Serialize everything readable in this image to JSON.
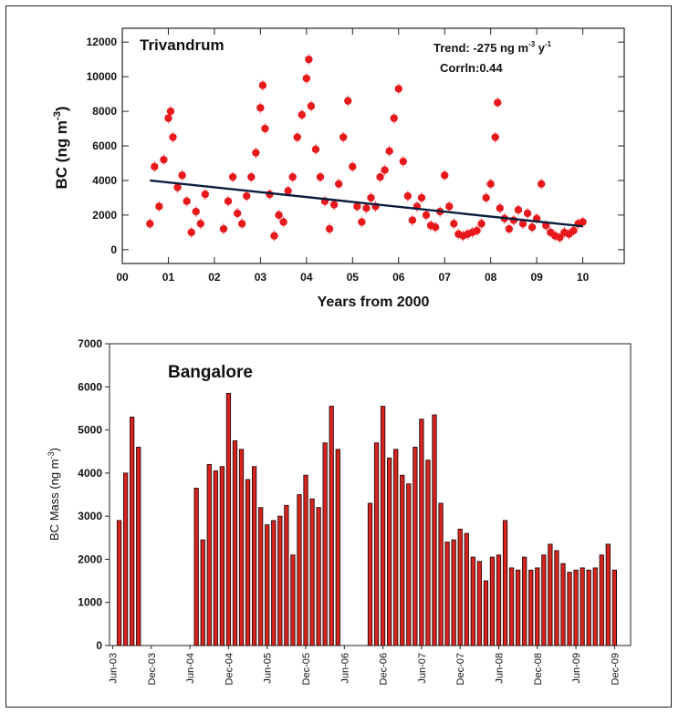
{
  "chart_data": [
    {
      "type": "scatter",
      "title": "Trivandrum",
      "annotation_trend": "Trend: -275 ng m",
      "annotation_trend_sup1": "-3",
      "annotation_trend_mid": " y",
      "annotation_trend_sup2": "-1",
      "annotation_corr": "Corrln:0.44",
      "ylabel_main": "BC (ng m",
      "ylabel_sup": "-3",
      "ylabel_end": ")",
      "xlabel": "Years from 2000",
      "xlim": [
        0,
        10.9
      ],
      "ylim": [
        -800,
        12800
      ],
      "x_ticks": [
        "00",
        "01",
        "02",
        "03",
        "04",
        "05",
        "06",
        "07",
        "08",
        "09",
        "10"
      ],
      "y_ticks": [
        "0",
        "2000",
        "4000",
        "6000",
        "8000",
        "10000",
        "12000"
      ],
      "point_color": "#e8191c",
      "trend_color": "#0a1e3c",
      "trend_line": {
        "x": [
          0.6,
          10.0
        ],
        "y": [
          4000,
          1350
        ]
      },
      "series": [
        {
          "x": [
            0.6,
            0.7,
            0.8,
            0.9,
            1.0,
            1.05,
            1.1,
            1.2,
            1.3,
            1.4,
            1.5,
            1.6,
            1.7,
            1.8,
            2.2,
            2.3,
            2.4,
            2.5,
            2.6,
            2.7,
            2.8,
            2.9,
            3.0,
            3.05,
            3.1,
            3.2,
            3.3,
            3.4,
            3.5,
            3.6,
            3.7,
            3.8,
            3.9,
            4.0,
            4.05,
            4.1,
            4.2,
            4.3,
            4.4,
            4.5,
            4.6,
            4.7,
            4.8,
            4.9,
            5.0,
            5.1,
            5.2,
            5.3,
            5.4,
            5.5,
            5.6,
            5.7,
            5.8,
            5.9,
            6.0,
            6.1,
            6.2,
            6.3,
            6.4,
            6.5,
            6.6,
            6.7,
            6.8,
            6.9,
            7.0,
            7.1,
            7.2,
            7.3,
            7.4,
            7.5,
            7.6,
            7.7,
            7.8,
            7.9,
            8.0,
            8.1,
            8.15,
            8.2,
            8.3,
            8.4,
            8.5,
            8.6,
            8.7,
            8.8,
            8.9,
            9.0,
            9.1,
            9.2,
            9.3,
            9.4,
            9.5,
            9.6,
            9.7,
            9.8,
            9.9,
            10.0
          ],
          "y": [
            1500,
            4800,
            2500,
            5200,
            7600,
            8000,
            6500,
            3600,
            4300,
            2800,
            1000,
            2200,
            1500,
            3200,
            1200,
            2800,
            4200,
            2100,
            1500,
            3100,
            4200,
            5600,
            8200,
            9500,
            7000,
            3200,
            800,
            2000,
            1600,
            3400,
            4200,
            6500,
            7800,
            9900,
            11000,
            8300,
            5800,
            4200,
            2800,
            1200,
            2600,
            3800,
            6500,
            8600,
            4800,
            2500,
            1600,
            2400,
            3000,
            2500,
            4200,
            4600,
            5700,
            7600,
            9300,
            5100,
            3100,
            1700,
            2500,
            3000,
            2000,
            1400,
            1300,
            2200,
            4300,
            2500,
            1500,
            900,
            800,
            900,
            1000,
            1100,
            1500,
            3000,
            3800,
            6500,
            8500,
            2400,
            1800,
            1200,
            1700,
            2300,
            1500,
            2100,
            1300,
            1800,
            3800,
            1400,
            1000,
            800,
            700,
            1000,
            900,
            1100,
            1500,
            1600
          ]
        }
      ]
    },
    {
      "type": "bar",
      "title": "Bangalore",
      "ylabel_main": "BC Mass (ng m",
      "ylabel_sup": "-3",
      "ylabel_end": ")",
      "ylim": [
        0,
        7000
      ],
      "y_ticks": [
        "0",
        "1000",
        "2000",
        "3000",
        "4000",
        "5000",
        "6000",
        "7000"
      ],
      "x_ticks": [
        "Jun-03",
        "Dec-03",
        "Jun-04",
        "Dec-04",
        "Jun-05",
        "Dec-05",
        "Jun-06",
        "Dec-06",
        "Jun-07",
        "Dec-07",
        "Jun-08",
        "Dec-08",
        "Jun-09",
        "Dec-09"
      ],
      "bar_color": "#d8231f",
      "bar_edge_color": "#2a0a0a",
      "months_from_jun03": [
        1,
        2,
        3,
        4,
        13,
        14,
        15,
        16,
        17,
        18,
        19,
        20,
        21,
        22,
        23,
        24,
        25,
        26,
        27,
        28,
        29,
        30,
        31,
        32,
        33,
        34,
        35,
        40,
        41,
        42,
        43,
        44,
        45,
        46,
        47,
        48,
        49,
        50,
        51,
        52,
        53,
        54,
        55,
        56,
        57,
        58,
        59,
        60,
        61,
        62,
        63,
        64,
        65,
        66,
        67,
        68,
        69,
        70,
        71,
        72,
        73,
        74,
        75,
        76,
        77,
        78
      ],
      "values": [
        2900,
        4000,
        5300,
        4600,
        3650,
        2450,
        4200,
        4050,
        4150,
        5850,
        4750,
        4550,
        3850,
        4150,
        3200,
        2800,
        2900,
        3000,
        3250,
        2100,
        3500,
        3950,
        3400,
        3200,
        4700,
        5550,
        4550,
        3300,
        4700,
        5550,
        4350,
        4550,
        3950,
        3750,
        4600,
        5250,
        4300,
        5350,
        3300,
        2400,
        2450,
        2700,
        2600,
        2050,
        1950,
        1500,
        2050,
        2100,
        2900,
        1800,
        1750,
        2050,
        1750,
        1800,
        2100,
        2350,
        2200,
        1900,
        1700,
        1750,
        1800,
        1750,
        1800,
        2100,
        2350,
        1750
      ]
    }
  ]
}
